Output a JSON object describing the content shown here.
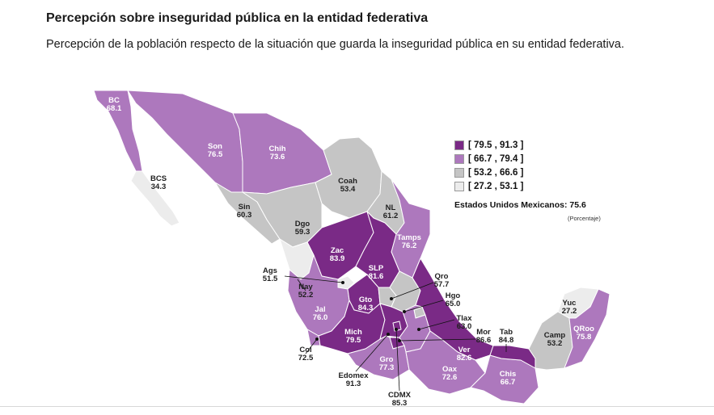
{
  "header": {
    "title": "Percepción sobre inseguridad pública en la entidad federativa",
    "subtitle": "Percepción de la población respecto de la situación que guarda la inseguridad pública en su entidad federativa."
  },
  "legend": {
    "items": [
      {
        "label": "[ 79.5 , 91.3 ]",
        "color": "#7a2a86"
      },
      {
        "label": "[ 66.7 , 79.4 ]",
        "color": "#ad78bd"
      },
      {
        "label": "[ 53.2 , 66.6 ]",
        "color": "#c5c5c5"
      },
      {
        "label": "[ 27.2 , 53.1 ]",
        "color": "#ececec"
      }
    ]
  },
  "national": {
    "label": "Estados Unidos Mexicanos:",
    "value": "75.6",
    "unit": "(Porcentaje)"
  },
  "states": [
    {
      "code": "BC",
      "value": "68.1",
      "color": "#ad78bd"
    },
    {
      "code": "BCS",
      "value": "34.3",
      "color": "#ececec"
    },
    {
      "code": "Son",
      "value": "76.5",
      "color": "#ad78bd"
    },
    {
      "code": "Chih",
      "value": "73.6",
      "color": "#ad78bd"
    },
    {
      "code": "Coah",
      "value": "53.4",
      "color": "#c5c5c5"
    },
    {
      "code": "NL",
      "value": "61.2",
      "color": "#c5c5c5"
    },
    {
      "code": "Tamps",
      "value": "76.2",
      "color": "#ad78bd"
    },
    {
      "code": "Sin",
      "value": "60.3",
      "color": "#c5c5c5"
    },
    {
      "code": "Dgo",
      "value": "59.3",
      "color": "#c5c5c5"
    },
    {
      "code": "Zac",
      "value": "83.9",
      "color": "#7a2a86"
    },
    {
      "code": "SLP",
      "value": "81.6",
      "color": "#7a2a86"
    },
    {
      "code": "Ags",
      "value": "51.5",
      "color": "#ececec"
    },
    {
      "code": "Nay",
      "value": "52.2",
      "color": "#ececec"
    },
    {
      "code": "Jal",
      "value": "76.0",
      "color": "#ad78bd"
    },
    {
      "code": "Gto",
      "value": "84.3",
      "color": "#7a2a86"
    },
    {
      "code": "Qro",
      "value": "57.7",
      "color": "#c5c5c5"
    },
    {
      "code": "Hgo",
      "value": "65.0",
      "color": "#c5c5c5"
    },
    {
      "code": "Tlax",
      "value": "63.0",
      "color": "#c5c5c5"
    },
    {
      "code": "Mor",
      "value": "86.6",
      "color": "#7a2a86"
    },
    {
      "code": "Tab",
      "value": "84.8",
      "color": "#7a2a86"
    },
    {
      "code": "Col",
      "value": "72.5",
      "color": "#ad78bd"
    },
    {
      "code": "Mich",
      "value": "79.5",
      "color": "#7a2a86"
    },
    {
      "code": "Gro",
      "value": "77.3",
      "color": "#ad78bd"
    },
    {
      "code": "Edomex",
      "value": "91.3",
      "color": "#7a2a86"
    },
    {
      "code": "CDMX",
      "value": "85.3",
      "color": "#7a2a86"
    },
    {
      "code": "Oax",
      "value": "72.6",
      "color": "#ad78bd"
    },
    {
      "code": "Ver",
      "value": "82.6",
      "color": "#7a2a86"
    },
    {
      "code": "Chis",
      "value": "66.7",
      "color": "#ad78bd"
    },
    {
      "code": "Camp",
      "value": "53.2",
      "color": "#c5c5c5"
    },
    {
      "code": "Yuc",
      "value": "27.2",
      "color": "#ececec"
    },
    {
      "code": "QRoo",
      "value": "75.8",
      "color": "#ad78bd"
    }
  ]
}
